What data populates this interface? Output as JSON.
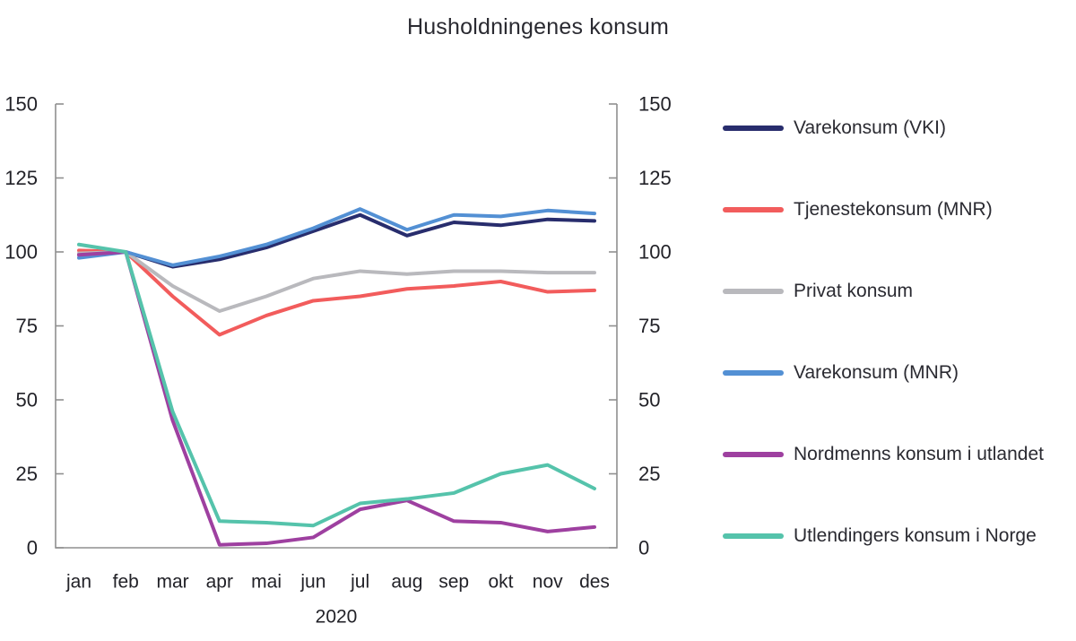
{
  "chart_data": {
    "type": "line",
    "title": "Husholdningenes konsum",
    "xlabel": "2020",
    "ylabel": "",
    "categories": [
      "jan",
      "feb",
      "mar",
      "apr",
      "mai",
      "jun",
      "jul",
      "aug",
      "sep",
      "okt",
      "nov",
      "des"
    ],
    "y_ticks": [
      0,
      25,
      50,
      75,
      100,
      125,
      150
    ],
    "ylim": [
      0,
      150
    ],
    "grid": false,
    "legend_position": "right",
    "dual_y_axis": true,
    "axis_color": "#8f8f8f",
    "text_color": "#222228",
    "series": [
      {
        "name": "Varekonsum (VKI)",
        "color": "#282d6d",
        "values": [
          99,
          100,
          95,
          97.5,
          101.5,
          107,
          112.5,
          105.5,
          110,
          109,
          111,
          110.5
        ]
      },
      {
        "name": "Tjenestekonsum (MNR)",
        "color": "#f25c5c",
        "values": [
          100.5,
          100,
          85,
          72,
          78.5,
          83.5,
          85,
          87.5,
          88.5,
          90,
          86.5,
          87
        ]
      },
      {
        "name": "Privat konsum",
        "color": "#b9b9bd",
        "values": [
          99.5,
          100,
          88.5,
          80,
          85,
          91,
          93.5,
          92.5,
          93.5,
          93.5,
          93,
          93
        ]
      },
      {
        "name": "Varekonsum (MNR)",
        "color": "#5390d4",
        "values": [
          98,
          100,
          95.5,
          98.5,
          102.5,
          108,
          114.5,
          107.5,
          112.5,
          112,
          114,
          113
        ]
      },
      {
        "name": "Nordmenns konsum i utlandet",
        "color": "#9e40a0",
        "values": [
          99,
          100,
          43,
          1,
          1.5,
          3.5,
          13,
          16,
          9,
          8.5,
          5.5,
          7
        ]
      },
      {
        "name": "Utlendingers konsum i Norge",
        "color": "#55c3ab",
        "values": [
          102.5,
          100,
          46,
          9,
          8.5,
          7.5,
          15,
          16.5,
          18.5,
          25,
          28,
          20
        ]
      }
    ]
  }
}
